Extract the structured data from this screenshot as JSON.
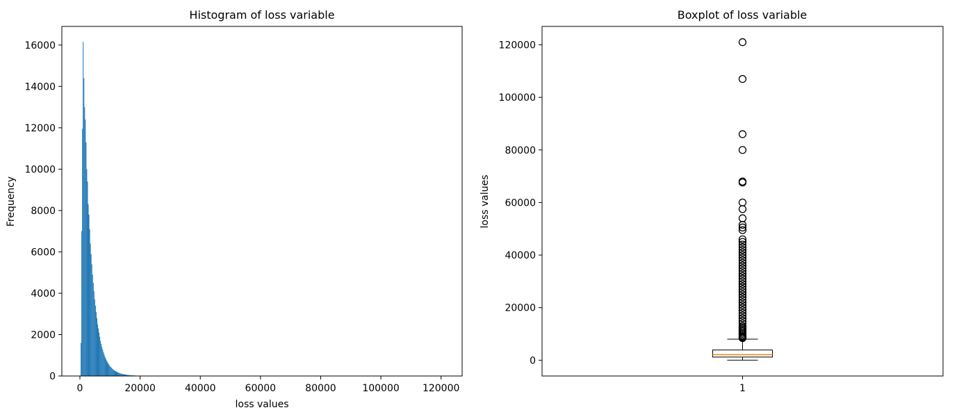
{
  "chart_data": [
    {
      "type": "bar",
      "title": "Histogram of loss variable",
      "xlabel": "loss values",
      "ylabel": "Frequency",
      "xlim": [
        -6000,
        127000
      ],
      "ylim": [
        0,
        16900
      ],
      "xticks": [
        0,
        20000,
        40000,
        60000,
        80000,
        100000,
        120000
      ],
      "yticks": [
        0,
        2000,
        4000,
        6000,
        8000,
        10000,
        12000,
        14000,
        16000
      ],
      "bar_color": "#1f77b4",
      "grid": false,
      "bin_width": 240,
      "bin_centers": [
        370,
        610,
        850,
        1090,
        1330,
        1570,
        1810,
        2050,
        2290,
        2530,
        2770,
        3010,
        3250,
        3490,
        3730,
        3970,
        4210,
        4450,
        4690,
        4930,
        5170,
        5410,
        5650,
        5890,
        6130,
        6370,
        6610,
        6850,
        7090,
        7330,
        7570,
        7810,
        8050,
        8290,
        8530,
        8770,
        9010,
        9250,
        9490,
        9730,
        9970,
        10210,
        10450,
        10690,
        10930,
        11170,
        11410,
        11650,
        11890,
        12130,
        12370,
        12610,
        12850,
        13090,
        13330,
        13570,
        13810,
        14050,
        14290,
        14530,
        14770,
        15010,
        15250,
        15490,
        15730,
        15970,
        16210,
        16450,
        16690,
        16930,
        17170,
        17410,
        17650,
        17890,
        18130,
        18370,
        18610,
        18850,
        19090,
        19330,
        19570,
        19810,
        20050,
        20290,
        20530,
        20770,
        21010,
        21250,
        21490,
        21730,
        21970,
        22210,
        22450,
        22690,
        22930,
        23170,
        23410,
        23650,
        23890,
        24130,
        24370,
        24610,
        24850,
        25090,
        25330,
        25570,
        25810,
        26050,
        26290,
        26530,
        26770,
        27010,
        27250,
        27490,
        27730,
        27970,
        28210,
        28450,
        28690,
        28930,
        29170,
        29410,
        29650,
        29890
      ],
      "frequencies": [
        1600,
        7000,
        11950,
        16150,
        14400,
        13000,
        12400,
        11300,
        10000,
        9400,
        8300,
        7800,
        7100,
        6400,
        5900,
        5400,
        4900,
        4500,
        4100,
        3700,
        3400,
        3100,
        2800,
        2500,
        2300,
        2100,
        1900,
        1700,
        1550,
        1400,
        1280,
        1160,
        1050,
        950,
        860,
        780,
        710,
        645,
        585,
        530,
        480,
        440,
        400,
        365,
        330,
        300,
        275,
        250,
        230,
        210,
        192,
        176,
        160,
        146,
        134,
        122,
        112,
        102,
        94,
        86,
        79,
        72,
        66,
        60,
        55,
        50,
        46,
        42,
        39,
        36,
        33,
        30,
        28,
        26,
        24,
        22,
        20,
        18,
        17,
        16,
        15,
        14,
        13,
        12,
        11,
        10,
        9,
        9,
        8,
        8,
        7,
        7,
        6,
        6,
        5,
        5,
        5,
        4,
        4,
        4,
        4,
        3,
        3,
        3,
        3,
        2,
        2,
        2,
        2,
        2,
        2,
        2,
        1,
        1,
        1,
        1,
        1,
        1,
        1,
        1,
        1,
        1
      ]
    },
    {
      "type": "box",
      "title": "Boxplot of loss variable",
      "xlabel": "",
      "ylabel": "loss values",
      "ylim": [
        -6000,
        127000
      ],
      "yticks": [
        0,
        20000,
        40000,
        60000,
        80000,
        100000,
        120000
      ],
      "xticklabels": [
        "1"
      ],
      "median_color": "#ff7f0e",
      "box": {
        "whisker_low": 0,
        "q1": 1200,
        "median": 2100,
        "q3": 3900,
        "whisker_high": 8000
      },
      "outliers": [
        121000,
        107000,
        86000,
        80000,
        68000,
        67600,
        60000,
        57500,
        54000,
        51500,
        50500,
        49500,
        46000,
        45000,
        44000,
        43000,
        42000,
        41000,
        40000,
        39000,
        38000,
        37000,
        36000,
        35000,
        34000,
        33000,
        32000,
        31000,
        30000,
        29000,
        28000,
        27000,
        26000,
        25000,
        24000,
        23000,
        22000,
        21000,
        20000,
        19000,
        18000,
        17000,
        16000,
        15000,
        14000,
        13000,
        12500,
        12000,
        11500,
        11000,
        10500,
        10000,
        9500,
        9000,
        8700,
        8400
      ]
    }
  ]
}
